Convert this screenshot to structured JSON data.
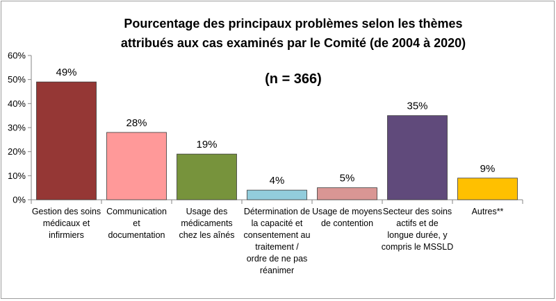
{
  "chart_data": {
    "type": "bar",
    "title": "Pourcentage des principaux problèmes selon les thèmes attribués aux cas examinés par le Comité (de 2004 à 2020)",
    "subtitle": "(n = 366)",
    "categories": [
      "Gestion des soins médicaux et infirmiers",
      "Communication et documentation",
      "Usage des médicaments chez les aînés",
      "Détermination de la capacité et consentement au traitement / ordre de ne pas réanimer",
      "Usage de moyens de contention",
      "Secteur des soins actifs et de longue durée, y compris le MSSLD",
      "Autres**"
    ],
    "category_label_lines": [
      "Gestion des soins\nmédicaux et\ninfirmiers",
      "Communication\net\ndocumentation",
      "Usage des\nmédicaments\nchez les aînés",
      "Détermination de\nla capacité et\nconsentement au\ntraitement /\nordre de ne pas\nréanimer",
      "Usage de moyens\nde contention",
      "Secteur des soins\nactifs et de\nlongue durée, y\ncompris le MSSLD",
      "Autres**"
    ],
    "values": [
      49,
      28,
      19,
      4,
      5,
      35,
      9
    ],
    "data_labels": [
      "49%",
      "28%",
      "19%",
      "4%",
      "5%",
      "35%",
      "9%"
    ],
    "colors": [
      "#953735",
      "#FF9999",
      "#77933C",
      "#92CDDC",
      "#D99694",
      "#604A7B",
      "#FFC000"
    ],
    "ylim": [
      0,
      60
    ],
    "yticks": [
      "0%",
      "10%",
      "20%",
      "30%",
      "40%",
      "50%",
      "60%"
    ],
    "grid": false,
    "legend": "none"
  }
}
